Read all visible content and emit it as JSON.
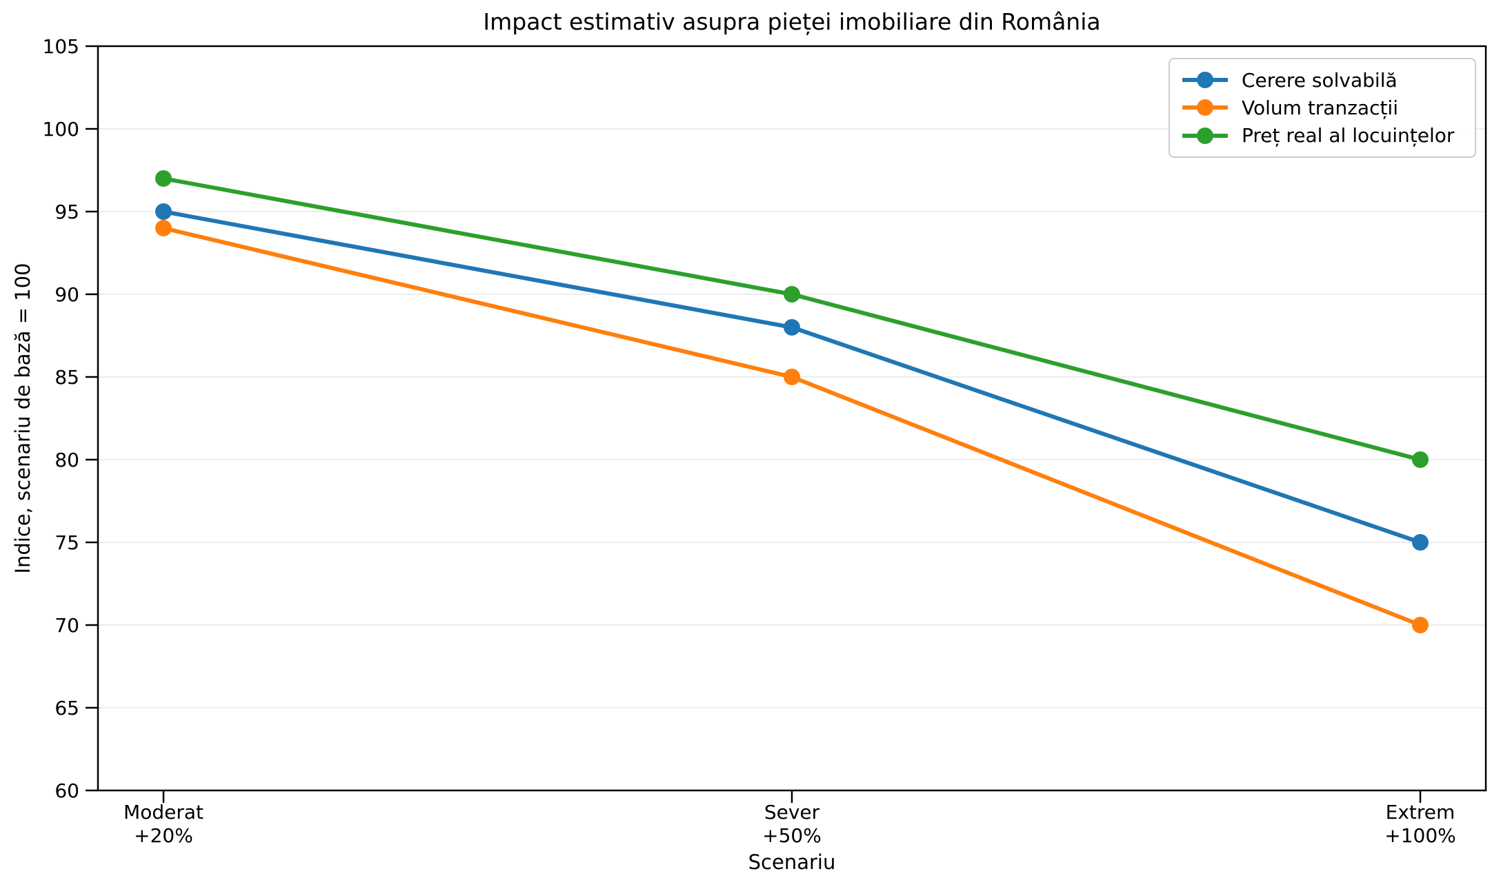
{
  "chart_data": {
    "type": "line",
    "title": "Impact estimativ asupra pieței imobiliare din România",
    "xlabel": "Scenariu",
    "ylabel": "Indice, scenariu de bază = 100",
    "categories": [
      "Moderat\n+20%",
      "Sever\n+50%",
      "Extrem\n+100%"
    ],
    "series": [
      {
        "name": "Cerere solvabilă",
        "color": "#1f77b4",
        "values": [
          95,
          88,
          75
        ]
      },
      {
        "name": "Volum tranzacții",
        "color": "#ff7f0e",
        "values": [
          94,
          85,
          70
        ]
      },
      {
        "name": "Preț real al locuințelor",
        "color": "#2ca02c",
        "values": [
          97,
          90,
          80
        ]
      }
    ],
    "ylim": [
      60,
      105
    ],
    "ytick_step": 5,
    "grid": true,
    "grid_color": "#e7e7e7",
    "axis_color": "#000000",
    "legend_position": "top-right"
  }
}
